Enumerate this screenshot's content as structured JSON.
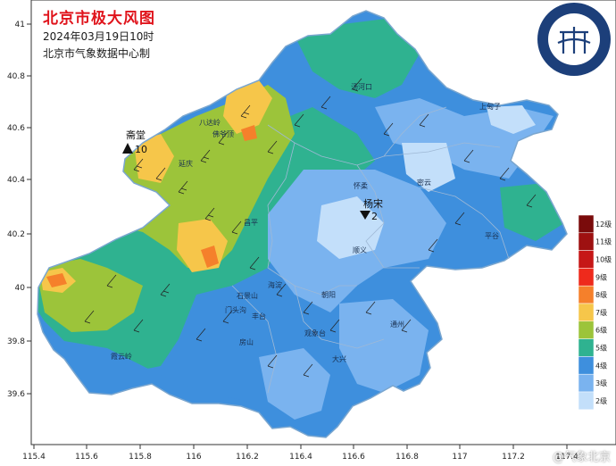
{
  "header": {
    "title": "北京市极大风图",
    "datetime": "2024年03月19日10时",
    "producer": "北京市气象数据中心制"
  },
  "axes": {
    "y_ticks": [
      "41",
      "40.8",
      "40.6",
      "40.4",
      "40.2",
      "40",
      "39.8",
      "39.6"
    ],
    "x_ticks": [
      "115.4",
      "115.6",
      "115.8",
      "116",
      "116.2",
      "116.4",
      "116.6",
      "116.8",
      "117",
      "117.2",
      "117.4"
    ]
  },
  "legend": {
    "title": "",
    "levels": [
      {
        "label": "12级",
        "color": "#7a0b0b"
      },
      {
        "label": "11级",
        "color": "#9e1111"
      },
      {
        "label": "10级",
        "color": "#c61717"
      },
      {
        "label": "9级",
        "color": "#ee2a1c"
      },
      {
        "label": "8级",
        "color": "#f5802b"
      },
      {
        "label": "7级",
        "color": "#f6c64a"
      },
      {
        "label": "6级",
        "color": "#9cc43a"
      },
      {
        "label": "5级",
        "color": "#2fb290"
      },
      {
        "label": "4级",
        "color": "#3e8fdd"
      },
      {
        "label": "3级",
        "color": "#7ab3ef"
      },
      {
        "label": "2级",
        "color": "#c3dffa"
      }
    ]
  },
  "stations": [
    {
      "name": "斋堂",
      "value": "10"
    },
    {
      "name": "杨宋",
      "value": "2"
    }
  ],
  "place_names": [
    "汤河口",
    "上甸子",
    "延庆",
    "昌平",
    "密云",
    "怀柔",
    "平谷",
    "顺义",
    "霞云岭",
    "海淀",
    "朝阳",
    "石景山",
    "门头沟",
    "丰台",
    "房山",
    "观象台",
    "通州",
    "大兴",
    "佛爷顶",
    "八达岭"
  ],
  "logo": {
    "text": "BEIJING METEOROLOGICAL SERVICE 北京市气象局"
  },
  "watermark": "@气象北京"
}
